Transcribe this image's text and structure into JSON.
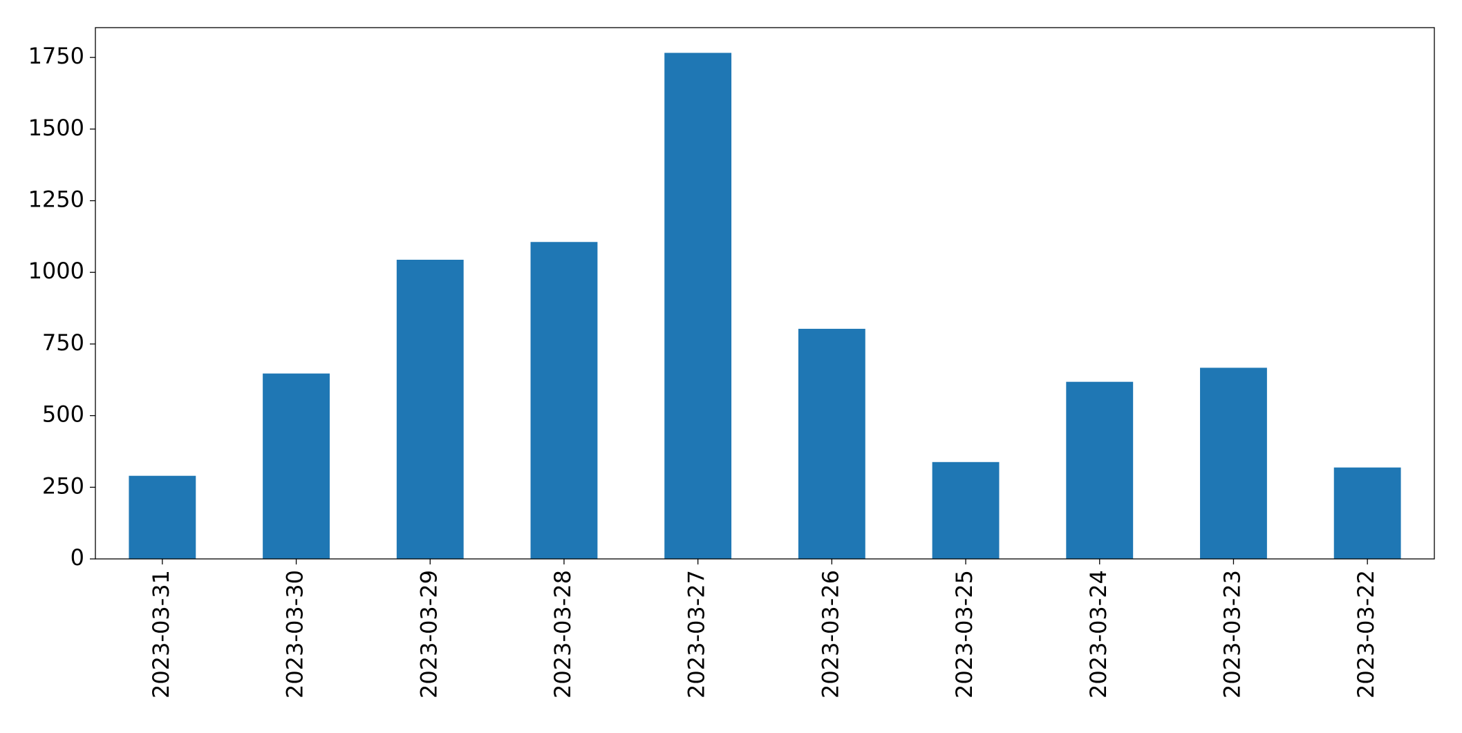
{
  "chart_data": {
    "type": "bar",
    "categories": [
      "2023-03-31",
      "2023-03-30",
      "2023-03-29",
      "2023-03-28",
      "2023-03-27",
      "2023-03-26",
      "2023-03-25",
      "2023-03-24",
      "2023-03-23",
      "2023-03-22"
    ],
    "values": [
      290,
      647,
      1044,
      1106,
      1766,
      803,
      338,
      618,
      667,
      319
    ],
    "color": "#1f77b4",
    "ylim": [
      0,
      1854
    ],
    "yticks": [
      0,
      250,
      500,
      750,
      1000,
      1250,
      1500,
      1750
    ],
    "grid": false
  }
}
